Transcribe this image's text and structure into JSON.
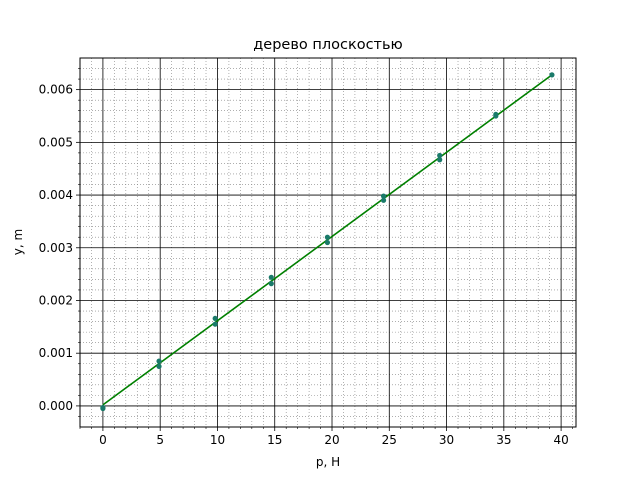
{
  "chart_data": {
    "type": "scatter",
    "title": "дерево плоскостью",
    "xlabel": "p, Н",
    "ylabel": "y, m",
    "xlim": [
      -2,
      41.3
    ],
    "ylim": [
      -0.0004,
      0.0066
    ],
    "xticks": [
      0,
      5,
      10,
      15,
      20,
      25,
      30,
      35,
      40
    ],
    "xtick_labels": [
      "0",
      "5",
      "10",
      "15",
      "20",
      "25",
      "30",
      "35",
      "40"
    ],
    "yticks": [
      0,
      0.001,
      0.002,
      0.003,
      0.004,
      0.005,
      0.006
    ],
    "ytick_labels": [
      "0.000",
      "0.001",
      "0.002",
      "0.003",
      "0.004",
      "0.005",
      "0.006"
    ],
    "grid": {
      "major": true,
      "minor": true
    },
    "series": [
      {
        "kind": "points",
        "color": "#1f77b4",
        "marker_color": "#1a7a6a",
        "x": [
          0,
          0,
          4.9,
          4.9,
          9.8,
          9.8,
          14.7,
          14.7,
          19.6,
          19.6,
          24.5,
          24.5,
          29.4,
          29.4,
          34.3,
          34.3,
          39.2
        ],
        "y": [
          -5e-05,
          -3e-05,
          0.00075,
          0.00085,
          0.00155,
          0.00166,
          0.00232,
          0.00244,
          0.0031,
          0.0032,
          0.0039,
          0.00398,
          0.00467,
          0.00475,
          0.0055,
          0.00553,
          0.00628
        ]
      },
      {
        "kind": "line",
        "color": "#008000",
        "x": [
          0,
          39.2
        ],
        "y": [
          2e-05,
          0.00628
        ]
      }
    ]
  }
}
